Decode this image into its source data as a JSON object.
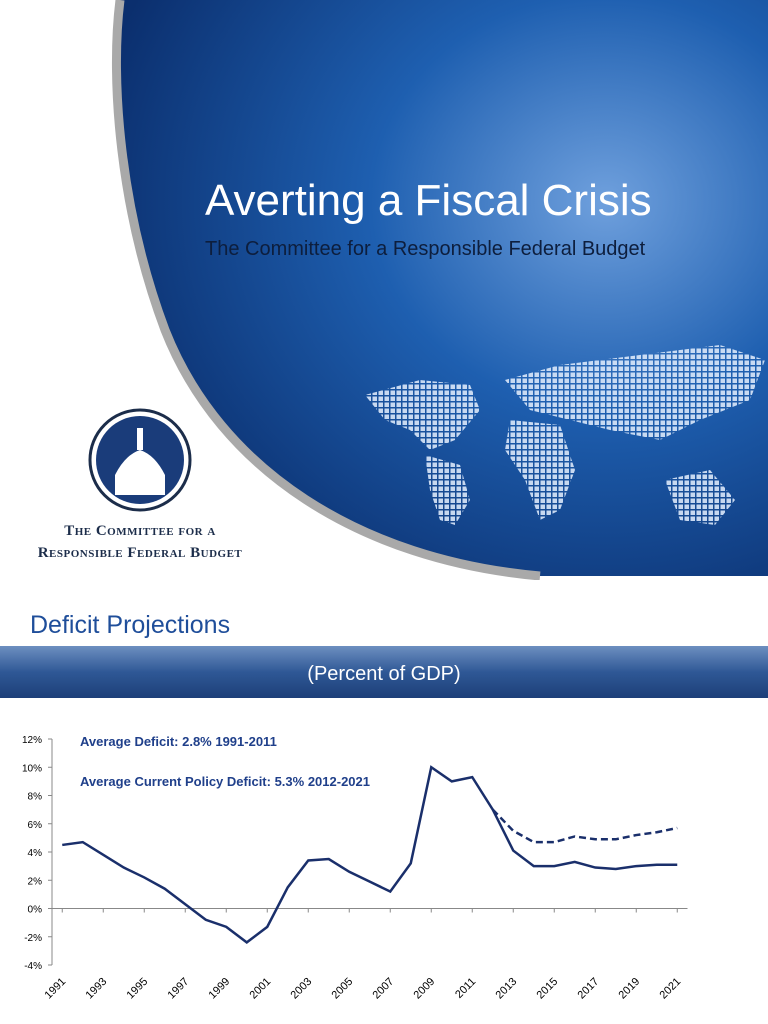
{
  "slide1": {
    "title": "Averting a Fiscal Crisis",
    "subtitle": "The Committee for a Responsible Federal Budget",
    "logo_line1": "The Committee for a",
    "logo_line2": "Responsible Federal Budget"
  },
  "slide2": {
    "heading": "Deficit Projections",
    "banner": "(Percent of GDP)"
  },
  "chart_data": {
    "type": "line",
    "annotations": [
      "Average Deficit: 2.8% 1991-2011",
      "Average Current Policy Deficit: 5.3% 2012-2021"
    ],
    "x": [
      1991,
      1992,
      1993,
      1994,
      1995,
      1996,
      1997,
      1998,
      1999,
      2000,
      2001,
      2002,
      2003,
      2004,
      2005,
      2006,
      2007,
      2008,
      2009,
      2010,
      2011,
      2012,
      2013,
      2014,
      2015,
      2016,
      2017,
      2018,
      2019,
      2020,
      2021
    ],
    "series": [
      {
        "color": "#1a2f6b",
        "dash": false,
        "values": [
          4.5,
          4.7,
          3.8,
          2.9,
          2.2,
          1.4,
          0.3,
          -0.8,
          -1.3,
          -2.4,
          -1.3,
          1.5,
          3.4,
          3.5,
          2.6,
          1.9,
          1.2,
          3.2,
          10.0,
          9.0,
          9.3,
          7.0,
          4.1,
          3.0,
          3.0,
          3.3,
          2.9,
          2.8,
          3.0,
          3.1,
          3.1
        ]
      },
      {
        "color": "#1a2f6b",
        "dash": true,
        "values": [
          null,
          null,
          null,
          null,
          null,
          null,
          null,
          null,
          null,
          null,
          null,
          null,
          null,
          null,
          null,
          null,
          null,
          null,
          null,
          null,
          null,
          7.0,
          5.5,
          4.7,
          4.7,
          5.1,
          4.9,
          4.9,
          5.2,
          5.4,
          5.7
        ]
      }
    ],
    "xlim": [
      1990.5,
      2021.5
    ],
    "xticks": [
      1991,
      1993,
      1995,
      1997,
      1999,
      2001,
      2003,
      2005,
      2007,
      2009,
      2011,
      2013,
      2015,
      2017,
      2019,
      2021
    ],
    "ylim": [
      -4,
      12
    ],
    "yticks": [
      {
        "value": -4,
        "label": "-4%"
      },
      {
        "value": -2,
        "label": "-2%"
      },
      {
        "value": 0,
        "label": "0%"
      },
      {
        "value": 2,
        "label": "2%"
      },
      {
        "value": 4,
        "label": "4%"
      },
      {
        "value": 6,
        "label": "6%"
      },
      {
        "value": 8,
        "label": "8%"
      },
      {
        "value": 10,
        "label": "10%"
      },
      {
        "value": 12,
        "label": "12%"
      }
    ],
    "grid": false
  }
}
